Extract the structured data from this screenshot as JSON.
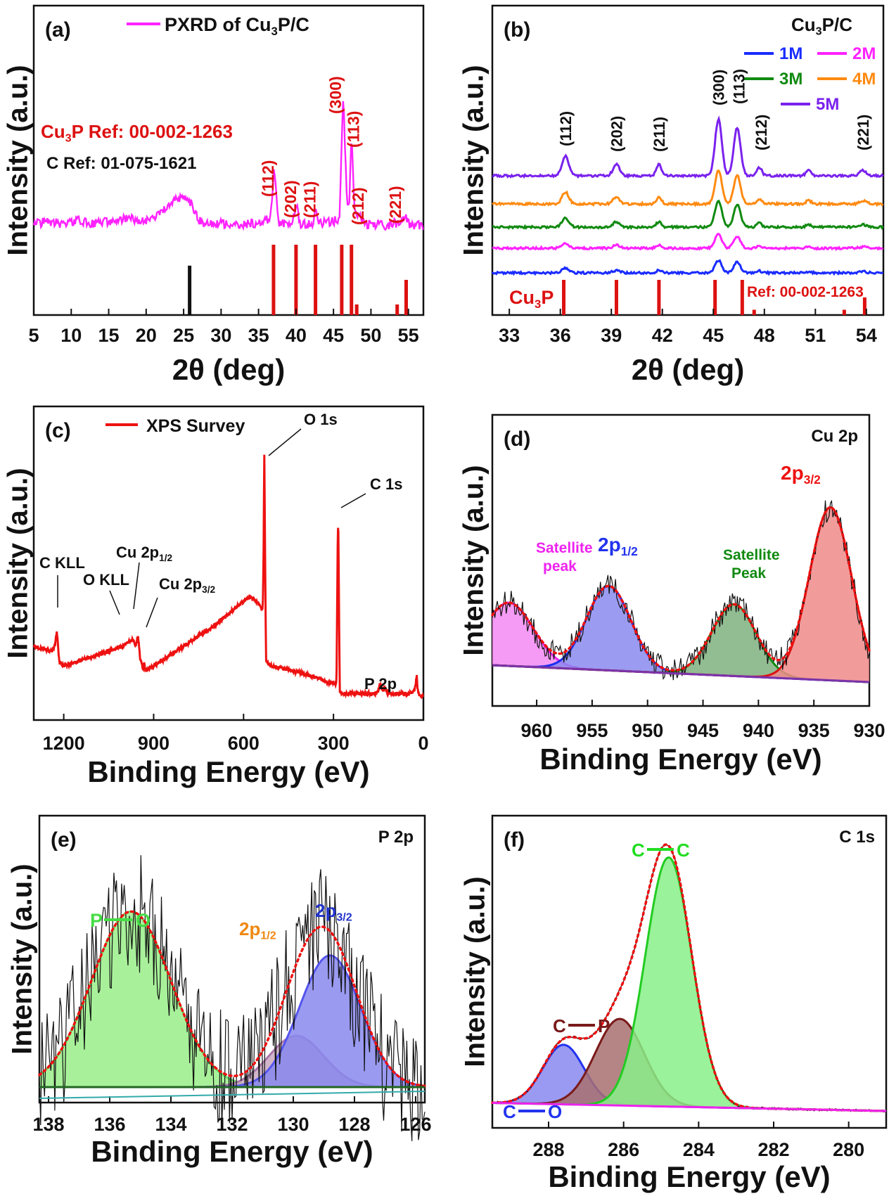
{
  "chart_data": [
    {
      "panel_label": "(a)",
      "type": "line",
      "legend_entries": [
        "PXRD of  Cu3P/C"
      ],
      "ylabel": "Intensity (a.u.)",
      "xlabel": "2θ (deg)",
      "xlim": [
        5,
        57
      ],
      "x_ticks": [
        "5",
        "10",
        "15",
        "20",
        "25",
        "30",
        "35",
        "40",
        "45",
        "50",
        "55"
      ],
      "annotations": [
        "Cu3P Ref: 00-002-1263",
        "C Ref: 01-075-1621"
      ],
      "peak_labels": [
        {
          "x": 37.0,
          "label": "(112)"
        },
        {
          "x": 40.0,
          "label": "(202)"
        },
        {
          "x": 42.6,
          "label": "(211)"
        },
        {
          "x": 46.3,
          "label": "(300)"
        },
        {
          "x": 47.4,
          "label": "(113)"
        },
        {
          "x": 48.6,
          "label": "(212)"
        },
        {
          "x": 54.5,
          "label": "(221)"
        }
      ],
      "series": [
        {
          "color": "#ff22ff",
          "x": [
            5,
            7,
            9,
            11,
            13,
            15,
            17,
            19,
            21,
            22,
            23,
            24,
            25,
            26,
            27,
            28,
            30,
            32,
            34,
            35.5,
            36.6,
            37.1,
            37.6,
            38.5,
            39.5,
            40.0,
            40.5,
            41.5,
            42.3,
            42.6,
            42.9,
            43.8,
            45.0,
            45.8,
            46.3,
            46.8,
            47.1,
            47.4,
            47.8,
            48.2,
            48.6,
            49.0,
            50,
            51,
            52,
            53,
            54,
            54.6,
            55,
            56,
            57
          ],
          "y": [
            20,
            21,
            20,
            22,
            20,
            21,
            23,
            22,
            22,
            26,
            29,
            33,
            35,
            31,
            22,
            20,
            20,
            19,
            20,
            20,
            24,
            52,
            21,
            20,
            20,
            32,
            20,
            20,
            20,
            30,
            20,
            21,
            21,
            23,
            90,
            33,
            28,
            72,
            27,
            22,
            25,
            20,
            19,
            20,
            19,
            20,
            21,
            24,
            20,
            19,
            19
          ]
        }
      ],
      "ref_c": {
        "color": "#111111",
        "positions": [
          25.8
        ],
        "heights": [
          26
        ]
      },
      "ref_cu3p": {
        "color": "#dd1111",
        "positions": [
          37.0,
          40.0,
          42.6,
          46.1,
          47.4,
          48.1,
          53.5,
          54.7
        ],
        "heights": [
          40,
          40,
          40,
          40,
          40,
          6,
          6,
          20
        ]
      }
    },
    {
      "panel_label": "(b)",
      "type": "line",
      "title": "Cu3P/C",
      "ylabel": "Intensity (a.u.)",
      "xlabel": "2θ (deg)",
      "xlim": [
        32,
        55
      ],
      "x_ticks": [
        "33",
        "36",
        "39",
        "42",
        "45",
        "48",
        "51",
        "54"
      ],
      "annotations": [
        "Cu3P",
        "Ref: 00-002-1263"
      ],
      "peak_labels": [
        {
          "x": 36.3,
          "label": "(112)"
        },
        {
          "x": 39.3,
          "label": "(202)"
        },
        {
          "x": 41.8,
          "label": "(211)"
        },
        {
          "x": 45.3,
          "label": "(300)"
        },
        {
          "x": 46.5,
          "label": "(113)"
        },
        {
          "x": 47.8,
          "label": "(212)"
        },
        {
          "x": 53.8,
          "label": "(221)"
        }
      ],
      "peak_shape": {
        "centers": [
          36.3,
          39.3,
          41.8,
          45.3,
          46.4,
          47.7,
          50.6,
          53.8
        ],
        "widths": [
          0.2,
          0.2,
          0.15,
          0.2,
          0.2,
          0.15,
          0.15,
          0.2
        ],
        "weights": [
          0.35,
          0.2,
          0.2,
          1.0,
          0.85,
          0.15,
          0.1,
          0.1
        ]
      },
      "series": [
        {
          "name": "1M",
          "color": "#1a2cff",
          "baseline": 0,
          "amplitude": 18
        },
        {
          "name": "2M",
          "color": "#ff22ff",
          "baseline": 35,
          "amplitude": 20
        },
        {
          "name": "3M",
          "color": "#118a11",
          "baseline": 65,
          "amplitude": 38
        },
        {
          "name": "4M",
          "color": "#ff8a11",
          "baseline": 98,
          "amplitude": 48
        },
        {
          "name": "5M",
          "color": "#7a22ee",
          "baseline": 138,
          "amplitude": 80
        }
      ],
      "ref_cu3p": {
        "color": "#dd1111",
        "positions": [
          36.2,
          39.3,
          41.8,
          45.1,
          46.7,
          47.4,
          52.7,
          53.9
        ],
        "heights": [
          40,
          40,
          40,
          40,
          40,
          6,
          6,
          20
        ]
      }
    },
    {
      "panel_label": "(c)",
      "type": "line",
      "legend_entries": [
        "XPS Survey"
      ],
      "ylabel": "Intensity (a.u.)",
      "xlabel": "Binding Energy (eV)",
      "xlim": [
        1300,
        0
      ],
      "x_ticks": [
        "1200",
        "900",
        "600",
        "300",
        "0"
      ],
      "annotations": [
        {
          "text": "O 1s",
          "x": 531
        },
        {
          "text": "C 1s",
          "x": 284
        },
        {
          "text": "C KLL",
          "x": 1223
        },
        {
          "text": "O KLL",
          "x": 978
        },
        {
          "text": "Cu 2p1/2",
          "x": 952
        },
        {
          "text": "Cu 2p3/2",
          "x": 932
        },
        {
          "text": "P 2p",
          "x": 130
        }
      ],
      "series": [
        {
          "color": "#ee1111",
          "x": [
            1300,
            1240,
            1230,
            1223,
            1215,
            1200,
            1100,
            1000,
            980,
            970,
            960,
            952,
            945,
            935,
            932,
            928,
            900,
            800,
            700,
            600,
            580,
            560,
            545,
            536,
            533,
            531,
            528,
            525,
            520,
            500,
            400,
            300,
            290,
            286,
            284,
            282,
            279,
            270,
            200,
            160,
            150,
            145,
            135,
            130,
            120,
            100,
            50,
            30,
            22,
            20,
            15,
            10,
            0
          ],
          "y": [
            20,
            18,
            20,
            26,
            14,
            12,
            16,
            20,
            22,
            23,
            20,
            24,
            15,
            11,
            14,
            10,
            12,
            20,
            28,
            38,
            40,
            38,
            36,
            35,
            60,
            100,
            55,
            14,
            13,
            12,
            9,
            5,
            5,
            60,
            72,
            40,
            2,
            1,
            1,
            1,
            2,
            5,
            2,
            4,
            1,
            1,
            1,
            2,
            8,
            3,
            1,
            0,
            0
          ]
        }
      ]
    },
    {
      "panel_label": "(d)",
      "type": "line",
      "title": "Cu 2p",
      "ylabel": "Intensity (a.u.)",
      "xlabel": "Binding Energy (eV)",
      "xlim": [
        964,
        930
      ],
      "x_ticks": [
        "960",
        "955",
        "950",
        "945",
        "940",
        "935",
        "930"
      ],
      "annotations": [
        "Satellite peak",
        "2p1/2",
        "Satellite Peak",
        "2p3/2"
      ],
      "components": [
        {
          "name": "Satellite peak",
          "color": "#ee22ee",
          "fill": "#f389f3",
          "center": 962.5,
          "sigma": 2.2,
          "amp": 30
        },
        {
          "name": "2p1/2",
          "color": "#1a2cee",
          "fill": "#8a8af0",
          "center": 953.5,
          "sigma": 2.0,
          "amp": 40
        },
        {
          "name": "Satellite Peak",
          "color": "#118a11",
          "fill": "#7fb07f",
          "center": 942.2,
          "sigma": 2.0,
          "amp": 34
        },
        {
          "name": "2p3/2",
          "color": "#dd1111",
          "fill": "#f08a8a",
          "center": 933.5,
          "sigma": 1.9,
          "amp": 82
        }
      ],
      "background": {
        "color": "#7a33aa",
        "left": 8,
        "right": 0
      }
    },
    {
      "panel_label": "(e)",
      "type": "line",
      "title": "P 2p",
      "ylabel": "Intensity (a.u.)",
      "xlabel": "Binding Energy (eV)",
      "xlim": [
        138.3,
        125.7
      ],
      "x_ticks": [
        "138",
        "136",
        "134",
        "132",
        "130",
        "128",
        "126"
      ],
      "annotations": [
        "P—O",
        "2p1/2",
        "2p3/2"
      ],
      "components": [
        {
          "name": "P—O",
          "color": "#66dd66",
          "fill": "#99ee88",
          "center": 135.3,
          "sigma": 1.3,
          "amp": 48
        },
        {
          "name": "2p1/2",
          "color": "#aa77aa",
          "fill": "#c9a7c0",
          "center": 129.9,
          "sigma": 0.9,
          "amp": 14
        },
        {
          "name": "2p3/2",
          "color": "#5555ee",
          "fill": "#8888ee",
          "center": 128.8,
          "sigma": 1.0,
          "amp": 36
        }
      ],
      "background": {
        "color": "#226622",
        "left": 0,
        "right": 0
      }
    },
    {
      "panel_label": "(f)",
      "type": "line",
      "title": "C 1s",
      "ylabel": "Intensity (a.u.)",
      "xlabel": "Binding Energy (eV)",
      "xlim": [
        289.5,
        279
      ],
      "x_ticks": [
        "288",
        "286",
        "284",
        "282",
        "280"
      ],
      "annotations": [
        "C—C",
        "C—P",
        "C—O"
      ],
      "components": [
        {
          "name": "C—O",
          "color": "#2233ee",
          "fill": "#8888f0",
          "center": 287.6,
          "sigma": 0.55,
          "amp": 22
        },
        {
          "name": "C—P",
          "color": "#7a1a1a",
          "fill": "#a87070",
          "center": 286.1,
          "sigma": 0.65,
          "amp": 32
        },
        {
          "name": "C—C",
          "color": "#22cc22",
          "fill": "#88f088",
          "center": 284.8,
          "sigma": 0.62,
          "amp": 92
        }
      ],
      "background": {
        "color": "#ee22ee",
        "left": 3,
        "right": 0
      }
    }
  ]
}
